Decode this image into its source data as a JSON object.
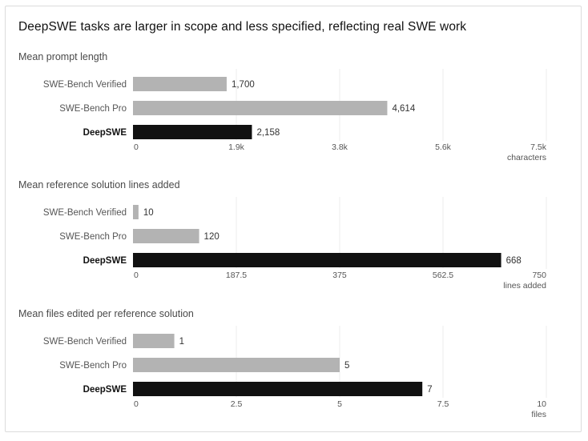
{
  "title": "DeepSWE tasks are larger in scope and less specified, reflecting real SWE work",
  "colors": {
    "highlight": "#111111",
    "default": "#b3b3b3",
    "grid": "#ececec"
  },
  "chart_data": [
    {
      "type": "bar",
      "orientation": "horizontal",
      "title": "Mean prompt length",
      "categories": [
        "SWE-Bench Verified",
        "SWE-Bench Pro",
        "DeepSWE"
      ],
      "values": [
        1700,
        4614,
        2158
      ],
      "value_labels": [
        "1,700",
        "4,614",
        "2,158"
      ],
      "highlight": "DeepSWE",
      "xlim": [
        0,
        7500
      ],
      "ticks": [
        0,
        1875,
        3750,
        5625,
        7500
      ],
      "tick_labels": [
        "0",
        "1.9k",
        "3.8k",
        "5.6k",
        "7.5k"
      ],
      "xlabel": "characters",
      "grid": true
    },
    {
      "type": "bar",
      "orientation": "horizontal",
      "title": "Mean reference solution lines added",
      "categories": [
        "SWE-Bench Verified",
        "SWE-Bench Pro",
        "DeepSWE"
      ],
      "values": [
        10,
        120,
        668
      ],
      "value_labels": [
        "10",
        "120",
        "668"
      ],
      "highlight": "DeepSWE",
      "xlim": [
        0,
        750
      ],
      "ticks": [
        0,
        187.5,
        375,
        562.5,
        750
      ],
      "tick_labels": [
        "0",
        "187.5",
        "375",
        "562.5",
        "750"
      ],
      "xlabel": "lines added",
      "grid": true
    },
    {
      "type": "bar",
      "orientation": "horizontal",
      "title": "Mean files edited per reference solution",
      "categories": [
        "SWE-Bench Verified",
        "SWE-Bench Pro",
        "DeepSWE"
      ],
      "values": [
        1,
        5,
        7
      ],
      "value_labels": [
        "1",
        "5",
        "7"
      ],
      "highlight": "DeepSWE",
      "xlim": [
        0,
        10
      ],
      "ticks": [
        0,
        2.5,
        5,
        7.5,
        10
      ],
      "tick_labels": [
        "0",
        "2.5",
        "5",
        "7.5",
        "10"
      ],
      "xlabel": "files",
      "grid": true
    }
  ]
}
